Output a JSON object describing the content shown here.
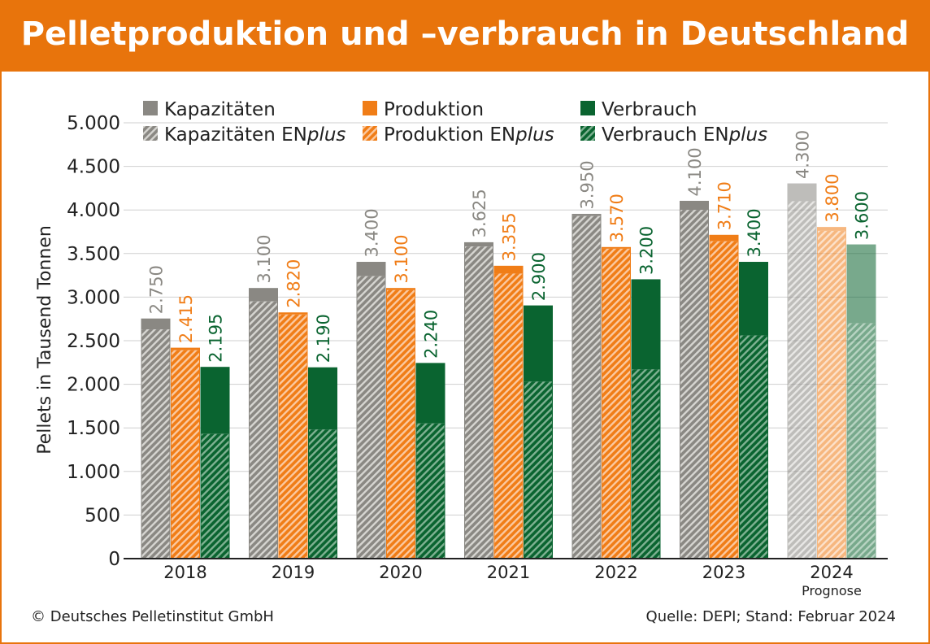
{
  "header": {
    "title": "Pelletproduktion und –verbrauch in Deutschland"
  },
  "footer": {
    "copyright": "© Deutsches Pelletinstitut GmbH",
    "source": "Quelle: DEPI; Stand: Februar 2024"
  },
  "colors": {
    "accent": "#e8740c",
    "kapazitaeten": "#8a8883",
    "produktion": "#f07d17",
    "verbrauch": "#0a6430",
    "kapazitaeten_label": "#8a8883",
    "produktion_label": "#f07d17",
    "verbrauch_label": "#0a6430"
  },
  "chart_data": {
    "type": "bar",
    "ylabel": "Pellets in Tausend Tonnen",
    "xlabel": "",
    "ylim": [
      0,
      5000
    ],
    "yticks": [
      0,
      500,
      1000,
      1500,
      2000,
      2500,
      3000,
      3500,
      4000,
      4500,
      5000
    ],
    "ytick_labels": [
      "0",
      "500",
      "1.000",
      "1.500",
      "2.000",
      "2.500",
      "3.000",
      "3.500",
      "4.000",
      "4.500",
      "5.000"
    ],
    "grid": true,
    "categories": [
      "2018",
      "2019",
      "2020",
      "2021",
      "2022",
      "2023",
      "2024"
    ],
    "category_note": {
      "index": 6,
      "text": "Prognose"
    },
    "series": [
      {
        "name": "Kapazitäten",
        "values": [
          2750,
          3100,
          3400,
          3625,
          3950,
          4100,
          4300
        ],
        "labels": [
          "2.750",
          "3.100",
          "3.400",
          "3.625",
          "3.950",
          "4.100",
          "4.300"
        ],
        "enplus_values": [
          2630,
          2950,
          3240,
          3580,
          3930,
          4000,
          4100
        ]
      },
      {
        "name": "Produktion",
        "values": [
          2415,
          2820,
          3100,
          3355,
          3570,
          3710,
          3800
        ],
        "labels": [
          "2.415",
          "2.820",
          "3.100",
          "3.355",
          "3.570",
          "3.710",
          "3.800"
        ],
        "enplus_values": [
          2390,
          2800,
          3080,
          3270,
          3555,
          3640,
          3760
        ]
      },
      {
        "name": "Verbrauch",
        "values": [
          2195,
          2190,
          2240,
          2900,
          3200,
          3400,
          3600
        ],
        "labels": [
          "2.195",
          "2.190",
          "2.240",
          "2.900",
          "3.200",
          "3.400",
          "3.600"
        ],
        "enplus_values": [
          1430,
          1480,
          1550,
          2030,
          2170,
          2560,
          2700
        ]
      }
    ],
    "legend": {
      "placement": "top",
      "entries": [
        {
          "text": "Kapazitäten",
          "suffix": "",
          "series": 0,
          "hatched": false
        },
        {
          "text": "Produktion",
          "suffix": "",
          "series": 1,
          "hatched": false
        },
        {
          "text": "Verbrauch",
          "suffix": "",
          "series": 2,
          "hatched": false
        },
        {
          "text": "Kapazitäten EN",
          "suffix": "plus",
          "series": 0,
          "hatched": true
        },
        {
          "text": "Produktion EN",
          "suffix": "plus",
          "series": 1,
          "hatched": true
        },
        {
          "text": "Verbrauch EN",
          "suffix": "plus",
          "series": 2,
          "hatched": true
        }
      ]
    }
  }
}
